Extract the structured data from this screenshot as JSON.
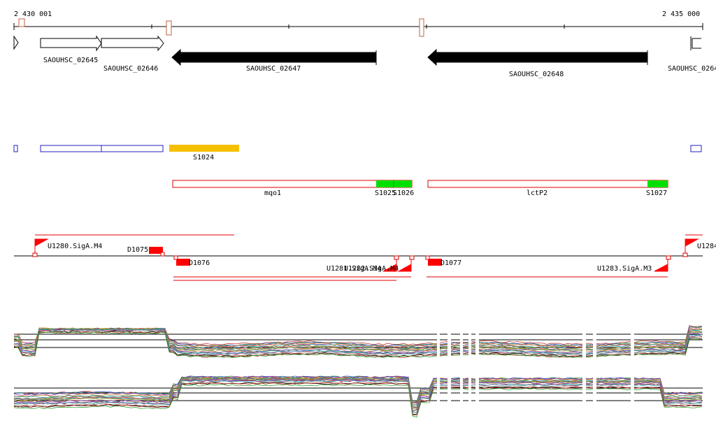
{
  "ruler": {
    "start_label": "2 430 001",
    "end_label": "2 435 000"
  },
  "genes": [
    {
      "label": "SAOUHSC_02645",
      "strand": "+",
      "type": "open"
    },
    {
      "label": "SAOUHSC_02646",
      "strand": "+",
      "type": "open"
    },
    {
      "label": "SAOUHSC_02647",
      "strand": "-",
      "type": "filled"
    },
    {
      "label": "SAOUHSC_02648",
      "strand": "-",
      "type": "filled"
    },
    {
      "label": "SAOUHSC_0264",
      "strand": "+",
      "type": "open"
    }
  ],
  "segments": [
    {
      "label": "S1024",
      "color": "#f5c000"
    },
    {
      "label": "S1025",
      "color": "#00e000"
    },
    {
      "label": "S1026",
      "color": "#00e000"
    },
    {
      "label": "S1027",
      "color": "#00e000"
    }
  ],
  "transcripts": [
    {
      "label": "mqo1"
    },
    {
      "label": "lctP2"
    }
  ],
  "promoters": [
    {
      "label": "U1280.SigA.M4"
    },
    {
      "label": "U1281.SigA.M4"
    },
    {
      "label": "U1282.SigA.M4"
    },
    {
      "label": "U1283.SigA.M3"
    },
    {
      "label": "U1284"
    }
  ],
  "terminators": [
    {
      "label": "D1075"
    },
    {
      "label": "D1076"
    },
    {
      "label": "D1077"
    }
  ],
  "colors": {
    "gene_outline": "#000000",
    "block_outline": "#2020c0",
    "transcript_outline": "#e00000",
    "marker_red": "#ff0000",
    "ruler_box": "#c06040"
  }
}
